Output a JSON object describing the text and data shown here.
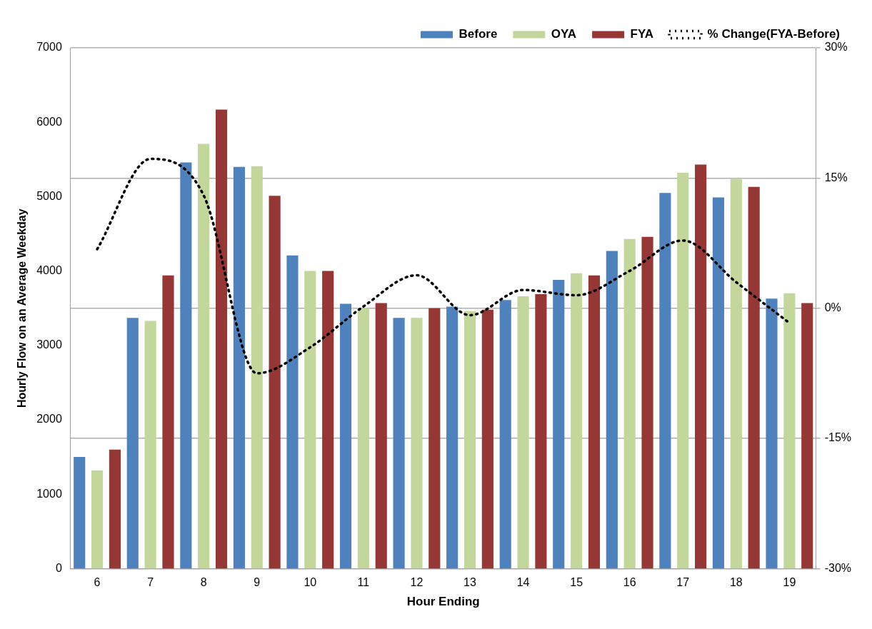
{
  "chart_data": {
    "type": "bar",
    "xlabel": "Hour Ending",
    "ylabel": "Hourly Flow on an Average Weekday",
    "categories": [
      "6",
      "7",
      "8",
      "9",
      "10",
      "11",
      "12",
      "13",
      "14",
      "15",
      "16",
      "17",
      "18",
      "19"
    ],
    "series": [
      {
        "name": "Before",
        "color": "#4f81bd",
        "values": [
          1500,
          3370,
          5460,
          5400,
          4210,
          3560,
          3370,
          3520,
          3610,
          3880,
          4270,
          5050,
          4990,
          3630
        ]
      },
      {
        "name": "OYA",
        "color": "#c3d69b",
        "values": [
          1320,
          3330,
          5710,
          5410,
          4000,
          3500,
          3370,
          3460,
          3660,
          3970,
          4430,
          5320,
          5240,
          3700
        ]
      },
      {
        "name": "FYA",
        "color": "#953735",
        "values": [
          1600,
          3940,
          6170,
          5010,
          4000,
          3570,
          3500,
          3480,
          3690,
          3940,
          4460,
          5430,
          5130,
          3570
        ]
      },
      {
        "name": "% Change(FYA-Before)",
        "type": "line",
        "axis": "y2",
        "color": "#000000",
        "line_style": "dotted",
        "marker": "none",
        "values": [
          6.8,
          17.2,
          13,
          -7.5,
          -4.5,
          0.2,
          3.8,
          -0.8,
          2.1,
          1.5,
          4.3,
          7.8,
          3,
          -1.7
        ]
      }
    ],
    "ylim": [
      0,
      7000
    ],
    "yticks": [
      0,
      1000,
      2000,
      3000,
      4000,
      5000,
      6000,
      7000
    ],
    "y2lim": [
      -30,
      30
    ],
    "y2ticks": [
      {
        "value": -30,
        "label": "-30%"
      },
      {
        "value": -15,
        "label": "-15%"
      },
      {
        "value": 0,
        "label": "0%"
      },
      {
        "value": 15,
        "label": "15%"
      },
      {
        "value": 30,
        "label": "30%"
      }
    ],
    "grid": "y",
    "legend": "top right"
  }
}
